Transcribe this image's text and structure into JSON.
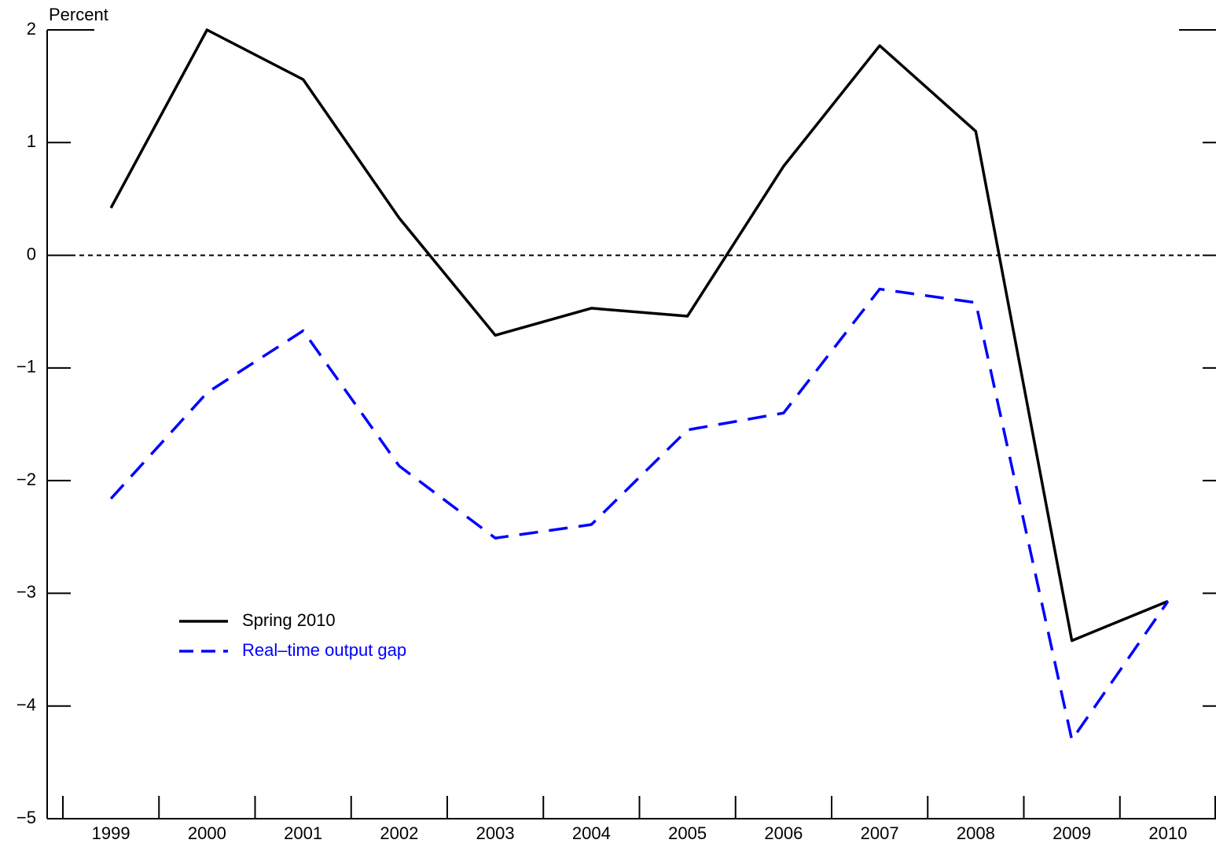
{
  "chart_data": {
    "type": "line",
    "y_label": "Percent",
    "categories": [
      "1999",
      "2000",
      "2001",
      "2002",
      "2003",
      "2004",
      "2005",
      "2006",
      "2007",
      "2008",
      "2009",
      "2010"
    ],
    "series": [
      {
        "name": "Spring 2010",
        "color": "#000000",
        "line_style": "solid",
        "values": [
          0.42,
          2.0,
          1.56,
          0.33,
          -0.71,
          -0.47,
          -0.54,
          0.79,
          1.86,
          1.1,
          -3.42,
          -3.07
        ]
      },
      {
        "name": "Real–time output gap",
        "color": "#0000ff",
        "line_style": "dashed",
        "values": [
          -2.16,
          -1.22,
          -0.67,
          -1.87,
          -2.51,
          -2.39,
          -1.55,
          -1.4,
          -0.3,
          -0.42,
          -4.3,
          -3.07
        ]
      }
    ],
    "ylim": [
      -5,
      2
    ],
    "yticks": [
      {
        "value": -5,
        "label": "−5"
      },
      {
        "value": -4,
        "label": "−4"
      },
      {
        "value": -3,
        "label": "−3"
      },
      {
        "value": -2,
        "label": "−2"
      },
      {
        "value": -1,
        "label": "−1"
      },
      0,
      1,
      2
    ],
    "zero_line": true,
    "legend": "lower left"
  }
}
